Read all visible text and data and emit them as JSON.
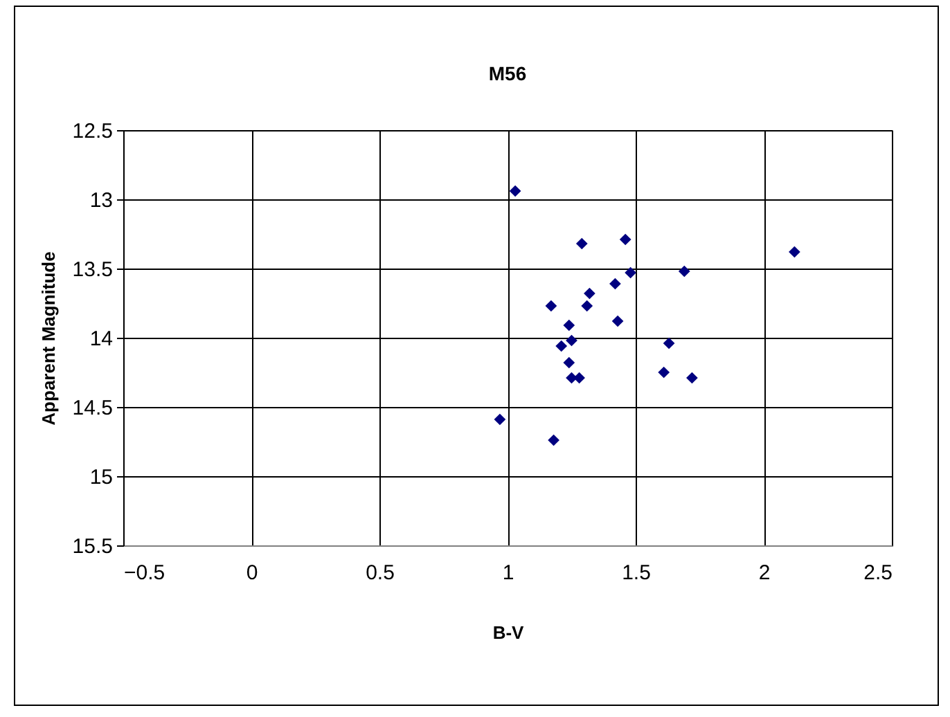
{
  "chart_data": {
    "type": "scatter",
    "title": "M56",
    "xlabel": "B-V",
    "ylabel": "Apparent Magnitude",
    "x": [
      1.03,
      1.29,
      1.46,
      2.12,
      1.48,
      1.69,
      1.42,
      1.32,
      1.31,
      1.17,
      1.43,
      1.24,
      1.25,
      1.21,
      1.63,
      1.24,
      1.25,
      1.28,
      1.61,
      1.72,
      0.97,
      1.18
    ],
    "series": [
      {
        "color": "#000080",
        "values": [
          12.94,
          13.32,
          13.29,
          13.38,
          13.53,
          13.52,
          13.61,
          13.68,
          13.77,
          13.77,
          13.88,
          13.91,
          14.02,
          14.06,
          14.04,
          14.18,
          14.29,
          14.29,
          14.25,
          14.29,
          14.59,
          14.74
        ]
      }
    ],
    "xlim": [
      -0.5,
      2.5
    ],
    "xticks": [
      -0.5,
      0,
      0.5,
      1,
      1.5,
      2,
      2.5
    ],
    "ylim": [
      15.5,
      12.5
    ],
    "yticks": [
      12.5,
      13,
      13.5,
      14,
      14.5,
      15,
      15.5
    ],
    "grid": true,
    "marker": "diamond"
  }
}
